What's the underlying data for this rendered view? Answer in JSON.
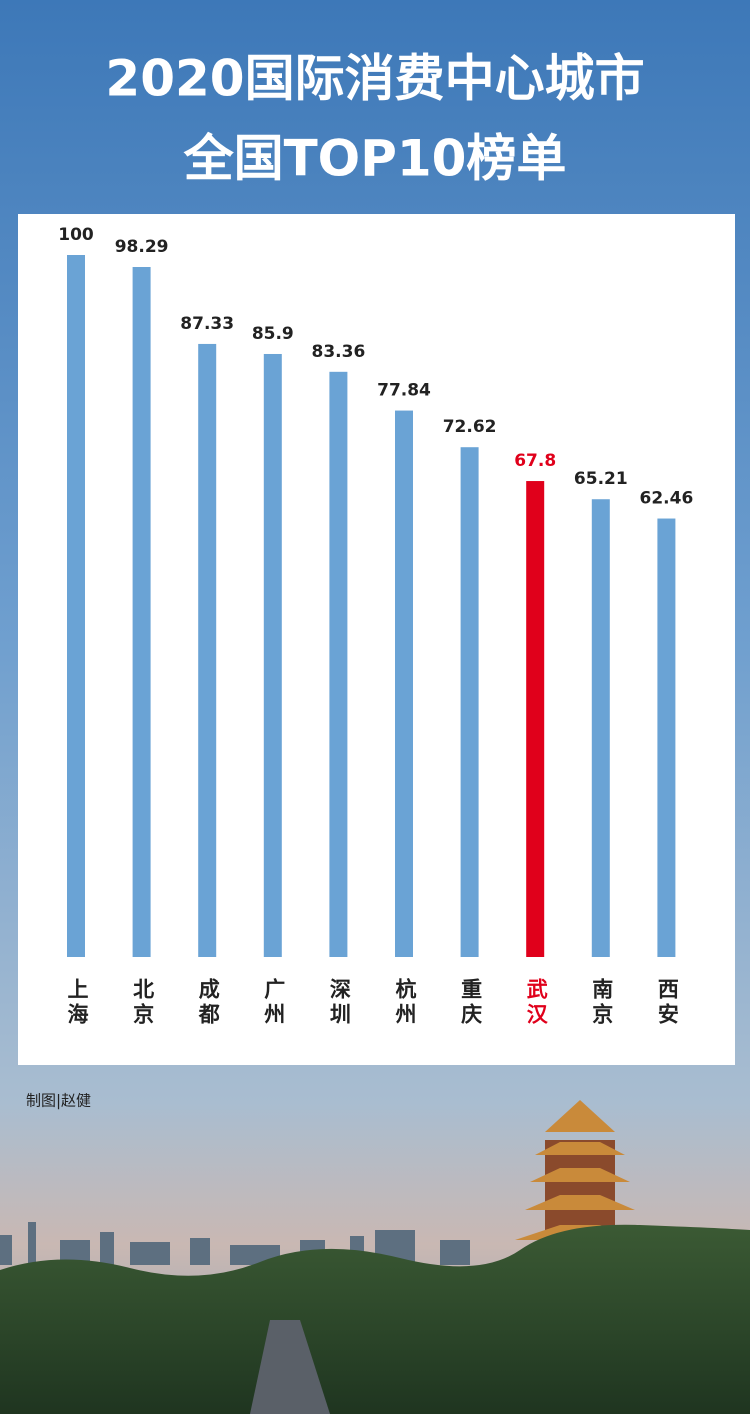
{
  "chart_data": {
    "type": "bar",
    "title": "2020国际消费中心城市",
    "subtitle": "全国TOP10榜单",
    "credit": "制图|赵健",
    "categories": [
      "上海",
      "北京",
      "成都",
      "广州",
      "深圳",
      "杭州",
      "重庆",
      "武汉",
      "南京",
      "西安"
    ],
    "values": [
      100,
      98.29,
      87.33,
      85.9,
      83.36,
      77.84,
      72.62,
      67.8,
      65.21,
      62.46
    ],
    "colors": [
      "#6aa3d5",
      "#6aa3d5",
      "#6aa3d5",
      "#6aa3d5",
      "#6aa3d5",
      "#6aa3d5",
      "#6aa3d5",
      "#e0001b",
      "#6aa3d5",
      "#6aa3d5"
    ],
    "ylim": [
      0,
      100
    ]
  }
}
